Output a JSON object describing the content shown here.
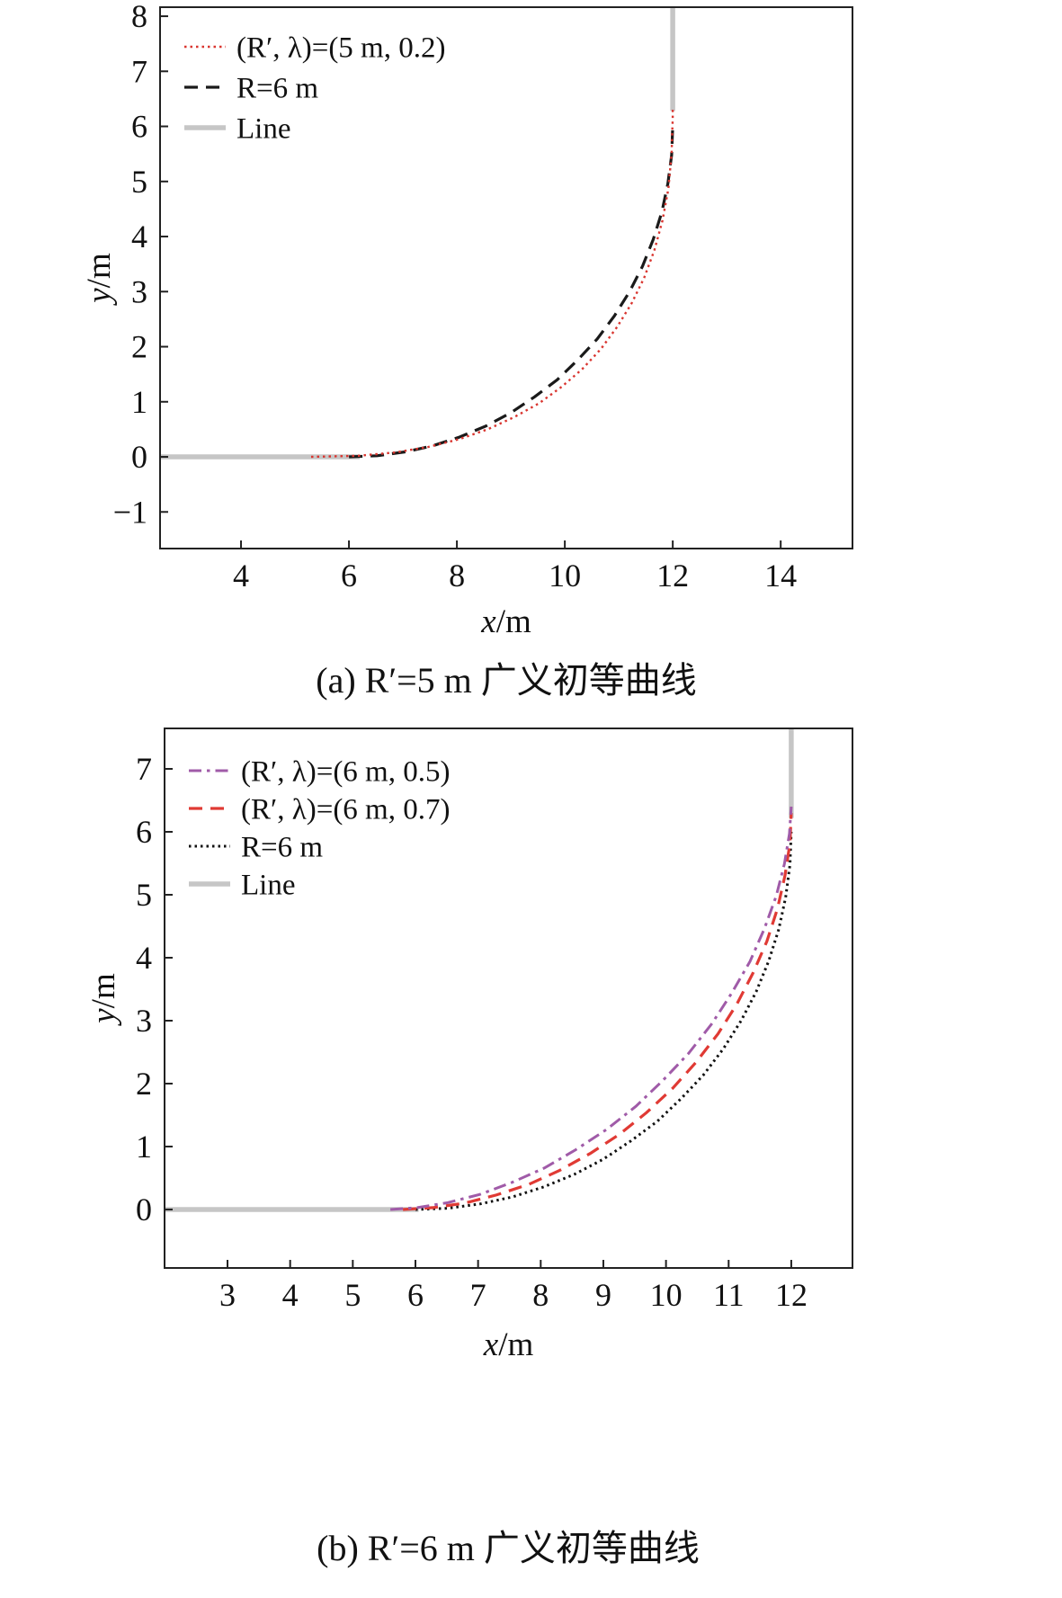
{
  "chart_data": [
    {
      "type": "line",
      "caption": "(a) R′=5 m 广义初等曲线",
      "xlabel": "x/m",
      "ylabel": "y/m",
      "xlim": [
        2.5,
        15.33
      ],
      "ylim": [
        -1.665,
        8.164
      ],
      "xticks": [
        4,
        6,
        8,
        10,
        12,
        14
      ],
      "yticks": [
        -1,
        0,
        1,
        2,
        3,
        4,
        5,
        6,
        7,
        8
      ],
      "grid": false,
      "legend_position": "top-left",
      "series": [
        {
          "name": "(R′, λ)=(5 m, 0.2)",
          "color": "#d9352f",
          "style": "dotted",
          "width": 2.4,
          "segments": [
            [
              [
                5.3,
                0.0
              ],
              [
                6.18,
                0.02
              ],
              [
                6.86,
                0.08
              ],
              [
                7.47,
                0.18
              ],
              [
                8.04,
                0.32
              ],
              [
                8.57,
                0.5
              ],
              [
                9.06,
                0.72
              ],
              [
                9.52,
                0.97
              ],
              [
                9.94,
                1.27
              ],
              [
                10.32,
                1.59
              ],
              [
                10.67,
                1.96
              ],
              [
                10.97,
                2.36
              ],
              [
                11.24,
                2.79
              ],
              [
                11.47,
                3.25
              ],
              [
                11.66,
                3.75
              ],
              [
                11.81,
                4.29
              ],
              [
                11.92,
                4.87
              ],
              [
                11.98,
                5.52
              ],
              [
                11.99,
                5.88
              ],
              [
                12.0,
                6.13
              ],
              [
                12.0,
                6.35
              ]
            ]
          ]
        },
        {
          "name": "R=6 m",
          "color": "#1a1a1a",
          "style": "dashed",
          "width": 3.2,
          "segments": [
            [
              [
                6.0,
                0.0
              ],
              [
                6.52,
                0.02
              ],
              [
                7.04,
                0.09
              ],
              [
                7.55,
                0.2
              ],
              [
                8.05,
                0.36
              ],
              [
                8.54,
                0.56
              ],
              [
                9.0,
                0.8
              ],
              [
                9.44,
                1.09
              ],
              [
                9.86,
                1.4
              ],
              [
                10.24,
                1.76
              ],
              [
                10.6,
                2.14
              ],
              [
                10.92,
                2.56
              ],
              [
                11.2,
                3.0
              ],
              [
                11.44,
                3.46
              ],
              [
                11.64,
                3.95
              ],
              [
                11.8,
                4.45
              ],
              [
                11.91,
                4.96
              ],
              [
                11.98,
                5.48
              ],
              [
                12.0,
                6.0
              ]
            ]
          ]
        },
        {
          "name": "Line",
          "color": "#c6c6c6",
          "style": "solid",
          "width": 5.5,
          "segments": [
            [
              [
                2.5,
                0
              ],
              [
                6.2,
                0
              ]
            ],
            [
              [
                12,
                6.28
              ],
              [
                12,
                8.164
              ]
            ]
          ]
        }
      ]
    },
    {
      "type": "line",
      "caption": "(b) R′=6 m 广义初等曲线",
      "xlabel": "x/m",
      "ylabel": "y/m",
      "xlim": [
        1.995,
        12.977
      ],
      "ylim": [
        -0.929,
        7.643
      ],
      "xticks": [
        3,
        4,
        5,
        6,
        7,
        8,
        9,
        10,
        11,
        12
      ],
      "yticks": [
        0,
        1,
        2,
        3,
        4,
        5,
        6,
        7
      ],
      "grid": false,
      "legend_position": "top-left",
      "series": [
        {
          "name": "(R′, λ)=(6 m, 0.5)",
          "color": "#a05ba8",
          "style": "dashdot",
          "width": 3,
          "segments": [
            [
              [
                5.6,
                0.0
              ],
              [
                6.03,
                0.03
              ],
              [
                6.52,
                0.11
              ],
              [
                7.03,
                0.24
              ],
              [
                7.54,
                0.43
              ],
              [
                8.06,
                0.66
              ],
              [
                8.56,
                0.95
              ],
              [
                9.05,
                1.27
              ],
              [
                9.52,
                1.64
              ],
              [
                9.95,
                2.05
              ],
              [
                10.36,
                2.48
              ],
              [
                10.73,
                2.95
              ],
              [
                11.05,
                3.44
              ],
              [
                11.34,
                3.94
              ],
              [
                11.57,
                4.46
              ],
              [
                11.76,
                4.98
              ],
              [
                11.89,
                5.49
              ],
              [
                11.97,
                5.97
              ],
              [
                12.0,
                6.4
              ]
            ]
          ]
        },
        {
          "name": "(R′, λ)=(6 m, 0.7)",
          "color": "#e03a34",
          "style": "dashed",
          "width": 3.2,
          "segments": [
            [
              [
                5.8,
                0.0
              ],
              [
                6.28,
                0.03
              ],
              [
                6.78,
                0.1
              ],
              [
                7.29,
                0.23
              ],
              [
                7.81,
                0.4
              ],
              [
                8.3,
                0.62
              ],
              [
                8.79,
                0.89
              ],
              [
                9.25,
                1.19
              ],
              [
                9.69,
                1.54
              ],
              [
                10.11,
                1.93
              ],
              [
                10.48,
                2.34
              ],
              [
                10.83,
                2.79
              ],
              [
                11.13,
                3.26
              ],
              [
                11.39,
                3.76
              ],
              [
                11.61,
                4.26
              ],
              [
                11.78,
                4.78
              ],
              [
                11.9,
                5.31
              ],
              [
                11.98,
                5.82
              ],
              [
                12.0,
                6.3
              ]
            ]
          ]
        },
        {
          "name": "R=6 m",
          "color": "#111111",
          "style": "dotted",
          "width": 3,
          "segments": [
            [
              [
                6.0,
                0.0
              ],
              [
                6.52,
                0.02
              ],
              [
                7.04,
                0.09
              ],
              [
                7.55,
                0.2
              ],
              [
                8.05,
                0.36
              ],
              [
                8.54,
                0.56
              ],
              [
                9.0,
                0.8
              ],
              [
                9.44,
                1.09
              ],
              [
                9.86,
                1.4
              ],
              [
                10.24,
                1.76
              ],
              [
                10.6,
                2.14
              ],
              [
                10.92,
                2.56
              ],
              [
                11.2,
                3.0
              ],
              [
                11.44,
                3.46
              ],
              [
                11.64,
                3.95
              ],
              [
                11.8,
                4.45
              ],
              [
                11.91,
                4.96
              ],
              [
                11.98,
                5.48
              ],
              [
                12.0,
                6.0
              ]
            ]
          ]
        },
        {
          "name": "Line",
          "color": "#c6c6c6",
          "style": "solid",
          "width": 5.5,
          "segments": [
            [
              [
                2.0,
                0
              ],
              [
                6.05,
                0
              ]
            ],
            [
              [
                12,
                6.22
              ],
              [
                12,
                7.643
              ]
            ]
          ]
        }
      ]
    }
  ]
}
